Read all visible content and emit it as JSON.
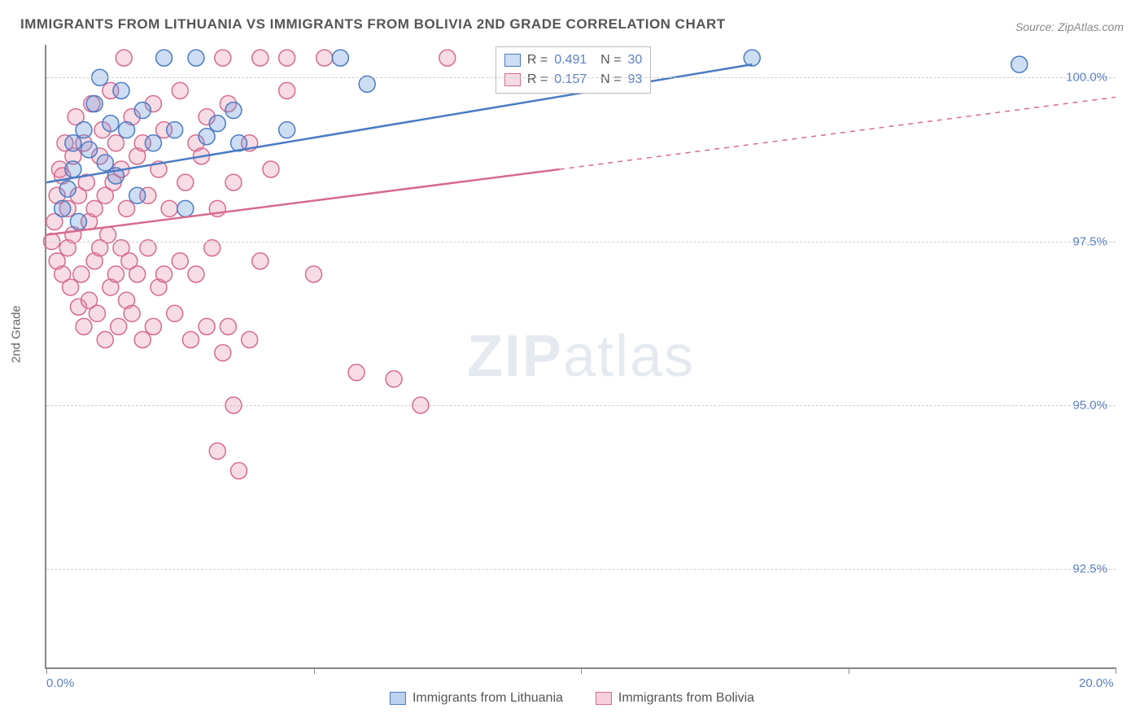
{
  "title": "IMMIGRANTS FROM LITHUANIA VS IMMIGRANTS FROM BOLIVIA 2ND GRADE CORRELATION CHART",
  "source": "Source: ZipAtlas.com",
  "y_axis_title": "2nd Grade",
  "watermark": {
    "zip": "ZIP",
    "atlas": "atlas"
  },
  "chart": {
    "type": "scatter",
    "background_color": "#ffffff",
    "grid_color": "#cccccc",
    "axis_color": "#888888",
    "text_color": "#555555",
    "value_color": "#5b7fc7",
    "xlim": [
      0,
      20
    ],
    "ylim": [
      91,
      100.5
    ],
    "x_ticks": [
      0,
      5,
      10,
      15,
      20
    ],
    "x_tick_labels_shown": {
      "0": "0.0%",
      "20": "20.0%"
    },
    "y_ticks": [
      92.5,
      95.0,
      97.5,
      100.0
    ],
    "y_tick_labels": [
      "92.5%",
      "95.0%",
      "97.5%",
      "100.0%"
    ],
    "marker_radius": 10,
    "marker_fill_opacity": 0.3,
    "marker_stroke_width": 1.5,
    "line_width": 2.5,
    "series": [
      {
        "name": "Immigrants from Lithuania",
        "color": "#5b8fd6",
        "fill": "rgba(91,143,214,0.3)",
        "stroke": "#4a7bc4",
        "r": "0.491",
        "n": "30",
        "trend_line": {
          "x1": 0,
          "y1": 98.4,
          "x2": 13.2,
          "y2": 100.2,
          "dashed_extend": false
        },
        "points": [
          [
            0.3,
            98.0
          ],
          [
            0.4,
            98.3
          ],
          [
            0.5,
            98.6
          ],
          [
            0.5,
            99.0
          ],
          [
            0.6,
            97.8
          ],
          [
            0.7,
            99.2
          ],
          [
            0.8,
            98.9
          ],
          [
            0.9,
            99.6
          ],
          [
            1.0,
            100.0
          ],
          [
            1.1,
            98.7
          ],
          [
            1.2,
            99.3
          ],
          [
            1.3,
            98.5
          ],
          [
            1.4,
            99.8
          ],
          [
            1.5,
            99.2
          ],
          [
            1.7,
            98.2
          ],
          [
            1.8,
            99.5
          ],
          [
            2.0,
            99.0
          ],
          [
            2.2,
            100.3
          ],
          [
            2.4,
            99.2
          ],
          [
            2.6,
            98.0
          ],
          [
            2.8,
            100.3
          ],
          [
            3.0,
            99.1
          ],
          [
            3.2,
            99.3
          ],
          [
            3.5,
            99.5
          ],
          [
            3.6,
            99.0
          ],
          [
            4.5,
            99.2
          ],
          [
            5.5,
            100.3
          ],
          [
            6.0,
            99.9
          ],
          [
            13.2,
            100.3
          ],
          [
            18.2,
            100.2
          ]
        ]
      },
      {
        "name": "Immigrants from Bolivia",
        "color": "#e88aa8",
        "fill": "rgba(232,138,168,0.3)",
        "stroke": "#d66b8f",
        "r": "0.157",
        "n": "93",
        "trend_line": {
          "x1": 0,
          "y1": 97.6,
          "x2": 9.6,
          "y2": 98.6,
          "dashed_extend": true,
          "dash_x2": 20,
          "dash_y2": 99.7
        },
        "points": [
          [
            0.1,
            97.5
          ],
          [
            0.15,
            97.8
          ],
          [
            0.2,
            98.2
          ],
          [
            0.2,
            97.2
          ],
          [
            0.25,
            98.6
          ],
          [
            0.3,
            97.0
          ],
          [
            0.3,
            98.5
          ],
          [
            0.35,
            99.0
          ],
          [
            0.4,
            97.4
          ],
          [
            0.4,
            98.0
          ],
          [
            0.45,
            96.8
          ],
          [
            0.5,
            98.8
          ],
          [
            0.5,
            97.6
          ],
          [
            0.55,
            99.4
          ],
          [
            0.6,
            96.5
          ],
          [
            0.6,
            98.2
          ],
          [
            0.65,
            97.0
          ],
          [
            0.7,
            99.0
          ],
          [
            0.7,
            96.2
          ],
          [
            0.75,
            98.4
          ],
          [
            0.8,
            97.8
          ],
          [
            0.8,
            96.6
          ],
          [
            0.85,
            99.6
          ],
          [
            0.9,
            97.2
          ],
          [
            0.9,
            98.0
          ],
          [
            0.95,
            96.4
          ],
          [
            1.0,
            98.8
          ],
          [
            1.0,
            97.4
          ],
          [
            1.05,
            99.2
          ],
          [
            1.1,
            96.0
          ],
          [
            1.1,
            98.2
          ],
          [
            1.15,
            97.6
          ],
          [
            1.2,
            99.8
          ],
          [
            1.2,
            96.8
          ],
          [
            1.25,
            98.4
          ],
          [
            1.3,
            97.0
          ],
          [
            1.3,
            99.0
          ],
          [
            1.35,
            96.2
          ],
          [
            1.4,
            98.6
          ],
          [
            1.4,
            97.4
          ],
          [
            1.45,
            100.3
          ],
          [
            1.5,
            96.6
          ],
          [
            1.5,
            98.0
          ],
          [
            1.55,
            97.2
          ],
          [
            1.6,
            99.4
          ],
          [
            1.6,
            96.4
          ],
          [
            1.7,
            98.8
          ],
          [
            1.7,
            97.0
          ],
          [
            1.8,
            99.0
          ],
          [
            1.8,
            96.0
          ],
          [
            1.9,
            98.2
          ],
          [
            1.9,
            97.4
          ],
          [
            2.0,
            99.6
          ],
          [
            2.0,
            96.2
          ],
          [
            2.1,
            98.6
          ],
          [
            2.1,
            96.8
          ],
          [
            2.2,
            99.2
          ],
          [
            2.2,
            97.0
          ],
          [
            2.3,
            98.0
          ],
          [
            2.4,
            96.4
          ],
          [
            2.5,
            99.8
          ],
          [
            2.5,
            97.2
          ],
          [
            2.6,
            98.4
          ],
          [
            2.7,
            96.0
          ],
          [
            2.8,
            99.0
          ],
          [
            2.8,
            97.0
          ],
          [
            2.9,
            98.8
          ],
          [
            3.0,
            96.2
          ],
          [
            3.0,
            99.4
          ],
          [
            3.1,
            97.4
          ],
          [
            3.2,
            98.0
          ],
          [
            3.2,
            94.3
          ],
          [
            3.3,
            100.3
          ],
          [
            3.3,
            95.8
          ],
          [
            3.4,
            99.6
          ],
          [
            3.4,
            96.2
          ],
          [
            3.5,
            95.0
          ],
          [
            3.5,
            98.4
          ],
          [
            3.6,
            94.0
          ],
          [
            3.8,
            99.0
          ],
          [
            3.8,
            96.0
          ],
          [
            4.0,
            100.3
          ],
          [
            4.0,
            97.2
          ],
          [
            4.2,
            98.6
          ],
          [
            4.5,
            99.8
          ],
          [
            4.5,
            100.3
          ],
          [
            5.0,
            97.0
          ],
          [
            5.2,
            100.3
          ],
          [
            5.8,
            95.5
          ],
          [
            6.5,
            95.4
          ],
          [
            7.0,
            95.0
          ],
          [
            7.5,
            100.3
          ],
          [
            9.5,
            100.3
          ]
        ]
      }
    ]
  },
  "bottom_legend": [
    {
      "label": "Immigrants from Lithuania",
      "color": "#5b8fd6",
      "fill": "rgba(91,143,214,0.4)",
      "stroke": "#4a7bc4"
    },
    {
      "label": "Immigrants from Bolivia",
      "color": "#e88aa8",
      "fill": "rgba(232,138,168,0.4)",
      "stroke": "#d66b8f"
    }
  ]
}
